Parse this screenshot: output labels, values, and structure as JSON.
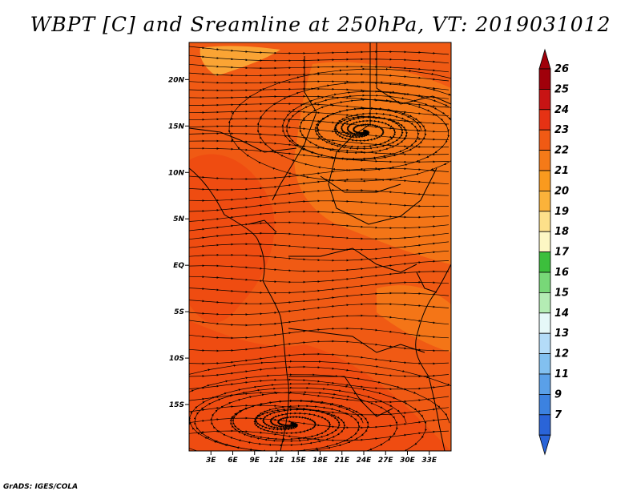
{
  "title": "WBPT [C] and Sreamline at 250hPa, VT: 2019031012",
  "credit": "GrADS: IGES/COLA",
  "map": {
    "projection": "lat-lon",
    "lon_range": [
      0,
      36
    ],
    "lat_range": [
      -20,
      24
    ],
    "lat_ticks": [
      {
        "value": 20,
        "label": "20N"
      },
      {
        "value": 15,
        "label": "15N"
      },
      {
        "value": 10,
        "label": "10N"
      },
      {
        "value": 5,
        "label": "5N"
      },
      {
        "value": 0,
        "label": "EQ"
      },
      {
        "value": -5,
        "label": "5S"
      },
      {
        "value": -10,
        "label": "10S"
      },
      {
        "value": -15,
        "label": "15S"
      }
    ],
    "lon_ticks": [
      {
        "value": 3,
        "label": "3E"
      },
      {
        "value": 6,
        "label": "6E"
      },
      {
        "value": 9,
        "label": "9E"
      },
      {
        "value": 12,
        "label": "12E"
      },
      {
        "value": 15,
        "label": "15E"
      },
      {
        "value": 18,
        "label": "18E"
      },
      {
        "value": 21,
        "label": "21E"
      },
      {
        "value": 24,
        "label": "24E"
      },
      {
        "value": 27,
        "label": "27E"
      },
      {
        "value": 30,
        "label": "30E"
      },
      {
        "value": 33,
        "label": "33E"
      }
    ],
    "field_colors": {
      "background": "#f05a14",
      "warm": "#ee4a10",
      "cool": "#f57a18",
      "lightest": "#fbb23a"
    },
    "cyclone_centers": [
      {
        "lon": 24,
        "lat": 14.5
      },
      {
        "lon": 14,
        "lat": -17
      }
    ]
  },
  "colorbar": {
    "levels": [
      "26",
      "25",
      "24",
      "23",
      "22",
      "21",
      "20",
      "19",
      "18",
      "17",
      "16",
      "15",
      "14",
      "13",
      "12",
      "11",
      "9",
      "7"
    ],
    "colors": [
      "#a0000a",
      "#c81414",
      "#e63214",
      "#f05a14",
      "#f57a18",
      "#fa9a1e",
      "#fbb23a",
      "#fde08a",
      "#fdf7c4",
      "#3cbf3c",
      "#78d878",
      "#b4ecb4",
      "#e6f8f8",
      "#b4dcf8",
      "#82c0f0",
      "#5aa0e8",
      "#3c82e0",
      "#2a64d8"
    ],
    "top_arrow_color": "#a0000a",
    "bottom_arrow_color": "#2a64d8"
  }
}
